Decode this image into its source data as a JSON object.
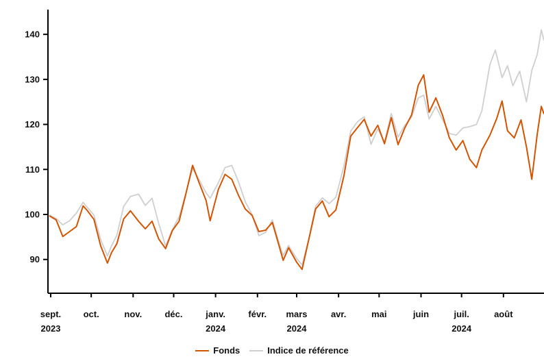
{
  "chart_data": {
    "type": "line",
    "x_axis": {
      "months": [
        {
          "date": "2023-09-01",
          "label": "sept.",
          "year": "2023"
        },
        {
          "date": "2023-10-01",
          "label": "oct.",
          "year": ""
        },
        {
          "date": "2023-11-01",
          "label": "nov.",
          "year": ""
        },
        {
          "date": "2023-12-01",
          "label": "déc.",
          "year": ""
        },
        {
          "date": "2024-01-01",
          "label": "janv.",
          "year": "2024"
        },
        {
          "date": "2024-02-01",
          "label": "févr.",
          "year": ""
        },
        {
          "date": "2024-03-01",
          "label": "mars",
          "year": "2024"
        },
        {
          "date": "2024-04-01",
          "label": "avr.",
          "year": ""
        },
        {
          "date": "2024-05-01",
          "label": "mai",
          "year": ""
        },
        {
          "date": "2024-06-01",
          "label": "juin",
          "year": ""
        },
        {
          "date": "2024-07-01",
          "label": "juil.",
          "year": "2024"
        },
        {
          "date": "2024-08-01",
          "label": "août",
          "year": ""
        }
      ],
      "range": [
        "2023-08-31",
        "2024-08-31"
      ]
    },
    "y_axis": {
      "ticks": [
        90,
        100,
        110,
        120,
        130,
        140
      ],
      "range": [
        82.5,
        145.5
      ]
    },
    "legend_position": "bottom-center",
    "grid": false,
    "series": [
      {
        "name": "Fonds",
        "color": "#d35400",
        "points": [
          [
            "2023-08-31",
            99.7
          ],
          [
            "2023-09-05",
            98.8
          ],
          [
            "2023-09-10",
            95.1
          ],
          [
            "2023-09-15",
            96.2
          ],
          [
            "2023-09-20",
            97.3
          ],
          [
            "2023-09-25",
            101.9
          ],
          [
            "2023-09-28",
            100.9
          ],
          [
            "2023-10-03",
            98.9
          ],
          [
            "2023-10-08",
            93.0
          ],
          [
            "2023-10-13",
            89.2
          ],
          [
            "2023-10-16",
            91.5
          ],
          [
            "2023-10-20",
            93.5
          ],
          [
            "2023-10-25",
            99.0
          ],
          [
            "2023-10-30",
            100.8
          ],
          [
            "2023-11-05",
            98.5
          ],
          [
            "2023-11-10",
            96.8
          ],
          [
            "2023-11-15",
            98.5
          ],
          [
            "2023-11-20",
            94.5
          ],
          [
            "2023-11-25",
            92.4
          ],
          [
            "2023-11-30",
            96.4
          ],
          [
            "2023-12-05",
            98.5
          ],
          [
            "2023-12-10",
            104.5
          ],
          [
            "2023-12-15",
            110.9
          ],
          [
            "2023-12-20",
            106.9
          ],
          [
            "2023-12-25",
            103.1
          ],
          [
            "2023-12-28",
            98.6
          ],
          [
            "2024-01-03",
            105.5
          ],
          [
            "2024-01-08",
            108.9
          ],
          [
            "2024-01-13",
            107.8
          ],
          [
            "2024-01-18",
            104.2
          ],
          [
            "2024-01-23",
            101.2
          ],
          [
            "2024-01-28",
            99.8
          ],
          [
            "2024-02-02",
            96.2
          ],
          [
            "2024-02-07",
            96.5
          ],
          [
            "2024-02-12",
            98.2
          ],
          [
            "2024-02-17",
            93.0
          ],
          [
            "2024-02-20",
            89.8
          ],
          [
            "2024-02-24",
            92.6
          ],
          [
            "2024-03-01",
            89.4
          ],
          [
            "2024-03-05",
            87.8
          ],
          [
            "2024-03-10",
            94.5
          ],
          [
            "2024-03-15",
            101.2
          ],
          [
            "2024-03-20",
            103.0
          ],
          [
            "2024-03-25",
            99.5
          ],
          [
            "2024-03-30",
            101.0
          ],
          [
            "2024-04-05",
            108.6
          ],
          [
            "2024-04-10",
            117.4
          ],
          [
            "2024-04-15",
            119.3
          ],
          [
            "2024-04-20",
            121.1
          ],
          [
            "2024-04-25",
            117.4
          ],
          [
            "2024-04-30",
            119.8
          ],
          [
            "2024-05-05",
            115.7
          ],
          [
            "2024-05-10",
            121.5
          ],
          [
            "2024-05-15",
            115.5
          ],
          [
            "2024-05-20",
            119.2
          ],
          [
            "2024-05-25",
            122.1
          ],
          [
            "2024-05-30",
            128.7
          ],
          [
            "2024-06-03",
            131.0
          ],
          [
            "2024-06-07",
            122.7
          ],
          [
            "2024-06-12",
            125.9
          ],
          [
            "2024-06-17",
            122.0
          ],
          [
            "2024-06-22",
            117.0
          ],
          [
            "2024-06-27",
            114.3
          ],
          [
            "2024-07-02",
            116.4
          ],
          [
            "2024-07-07",
            112.3
          ],
          [
            "2024-07-12",
            110.4
          ],
          [
            "2024-07-16",
            114.3
          ],
          [
            "2024-07-22",
            117.6
          ],
          [
            "2024-07-27",
            121.3
          ],
          [
            "2024-07-31",
            125.2
          ],
          [
            "2024-08-04",
            118.6
          ],
          [
            "2024-08-09",
            117.0
          ],
          [
            "2024-08-14",
            121.0
          ],
          [
            "2024-08-18",
            115.0
          ],
          [
            "2024-08-22",
            107.8
          ],
          [
            "2024-08-26",
            117.8
          ],
          [
            "2024-08-29",
            124.0
          ],
          [
            "2024-08-31",
            122.3
          ]
        ]
      },
      {
        "name": "Indice de référence",
        "color": "#cfcfcf",
        "points": [
          [
            "2023-08-31",
            99.9
          ],
          [
            "2023-09-05",
            99.1
          ],
          [
            "2023-09-10",
            97.7
          ],
          [
            "2023-09-15",
            98.6
          ],
          [
            "2023-09-20",
            100.3
          ],
          [
            "2023-09-25",
            102.7
          ],
          [
            "2023-09-28",
            101.6
          ],
          [
            "2023-10-03",
            99.9
          ],
          [
            "2023-10-08",
            94.4
          ],
          [
            "2023-10-13",
            90.8
          ],
          [
            "2023-10-16",
            93.0
          ],
          [
            "2023-10-20",
            95.4
          ],
          [
            "2023-10-25",
            101.8
          ],
          [
            "2023-10-30",
            104.0
          ],
          [
            "2023-11-05",
            104.5
          ],
          [
            "2023-11-10",
            102.0
          ],
          [
            "2023-11-15",
            103.6
          ],
          [
            "2023-11-20",
            97.9
          ],
          [
            "2023-11-25",
            93.0
          ],
          [
            "2023-11-30",
            96.6
          ],
          [
            "2023-12-05",
            99.5
          ],
          [
            "2023-12-10",
            104.7
          ],
          [
            "2023-12-15",
            110.2
          ],
          [
            "2023-12-20",
            107.6
          ],
          [
            "2023-12-25",
            104.8
          ],
          [
            "2023-12-28",
            103.6
          ],
          [
            "2024-01-03",
            107.0
          ],
          [
            "2024-01-08",
            110.4
          ],
          [
            "2024-01-13",
            110.9
          ],
          [
            "2024-01-18",
            107.2
          ],
          [
            "2024-01-23",
            102.8
          ],
          [
            "2024-01-28",
            100.0
          ],
          [
            "2024-02-02",
            95.3
          ],
          [
            "2024-02-07",
            96.0
          ],
          [
            "2024-02-12",
            98.8
          ],
          [
            "2024-02-17",
            93.6
          ],
          [
            "2024-02-20",
            90.9
          ],
          [
            "2024-02-24",
            93.1
          ],
          [
            "2024-03-01",
            90.2
          ],
          [
            "2024-03-05",
            88.8
          ],
          [
            "2024-03-10",
            94.6
          ],
          [
            "2024-03-15",
            101.8
          ],
          [
            "2024-03-20",
            103.7
          ],
          [
            "2024-03-25",
            102.4
          ],
          [
            "2024-03-30",
            103.8
          ],
          [
            "2024-04-05",
            110.8
          ],
          [
            "2024-04-10",
            118.5
          ],
          [
            "2024-04-15",
            120.6
          ],
          [
            "2024-04-20",
            121.7
          ],
          [
            "2024-04-25",
            115.6
          ],
          [
            "2024-04-30",
            119.0
          ],
          [
            "2024-05-05",
            116.1
          ],
          [
            "2024-05-10",
            122.4
          ],
          [
            "2024-05-15",
            117.2
          ],
          [
            "2024-05-20",
            119.8
          ],
          [
            "2024-05-25",
            121.6
          ],
          [
            "2024-05-30",
            125.9
          ],
          [
            "2024-06-03",
            126.5
          ],
          [
            "2024-06-07",
            121.2
          ],
          [
            "2024-06-12",
            124.0
          ],
          [
            "2024-06-17",
            121.0
          ],
          [
            "2024-06-22",
            118.0
          ],
          [
            "2024-06-27",
            117.6
          ],
          [
            "2024-07-02",
            119.2
          ],
          [
            "2024-07-07",
            119.5
          ],
          [
            "2024-07-12",
            120.0
          ],
          [
            "2024-07-16",
            123.0
          ],
          [
            "2024-07-22",
            133.3
          ],
          [
            "2024-07-26",
            136.5
          ],
          [
            "2024-07-31",
            130.4
          ],
          [
            "2024-08-04",
            133.0
          ],
          [
            "2024-08-08",
            128.6
          ],
          [
            "2024-08-13",
            131.8
          ],
          [
            "2024-08-18",
            125.0
          ],
          [
            "2024-08-22",
            132.0
          ],
          [
            "2024-08-26",
            135.5
          ],
          [
            "2024-08-29",
            141.0
          ],
          [
            "2024-08-31",
            138.6
          ]
        ]
      }
    ]
  }
}
